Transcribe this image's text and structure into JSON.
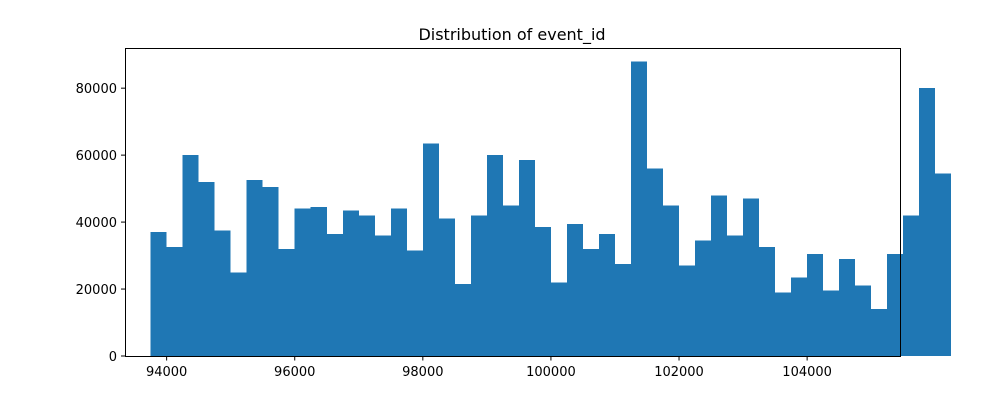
{
  "chart_data": {
    "type": "histogram",
    "title": "Distribution of event_id",
    "xlabel": "",
    "ylabel": "",
    "bin_start": 93750,
    "bin_width": 250,
    "counts": [
      37000,
      32500,
      60000,
      52000,
      37500,
      25000,
      52500,
      50500,
      32000,
      44000,
      44500,
      36500,
      43500,
      42000,
      36000,
      44000,
      31500,
      63500,
      41000,
      21500,
      42000,
      60000,
      45000,
      58500,
      38500,
      22000,
      39500,
      32000,
      36500,
      27500,
      88000,
      56000,
      45000,
      27000,
      34500,
      48000,
      36000,
      47000,
      32500,
      19000,
      23500,
      30500,
      19500,
      29000,
      21000,
      14000,
      30500,
      42000,
      80000,
      54500
    ],
    "xlim": [
      93350,
      105450
    ],
    "ylim": [
      0,
      92000
    ],
    "x_ticks": [
      94000,
      96000,
      98000,
      100000,
      102000,
      104000
    ],
    "x_tick_labels": [
      "94000",
      "96000",
      "98000",
      "100000",
      "102000",
      "104000"
    ],
    "y_ticks": [
      0,
      20000,
      40000,
      60000,
      80000
    ],
    "y_tick_labels": [
      "0",
      "20000",
      "40000",
      "60000",
      "80000"
    ],
    "bar_color": "#1f77b4",
    "grid": false,
    "legend": "none"
  }
}
